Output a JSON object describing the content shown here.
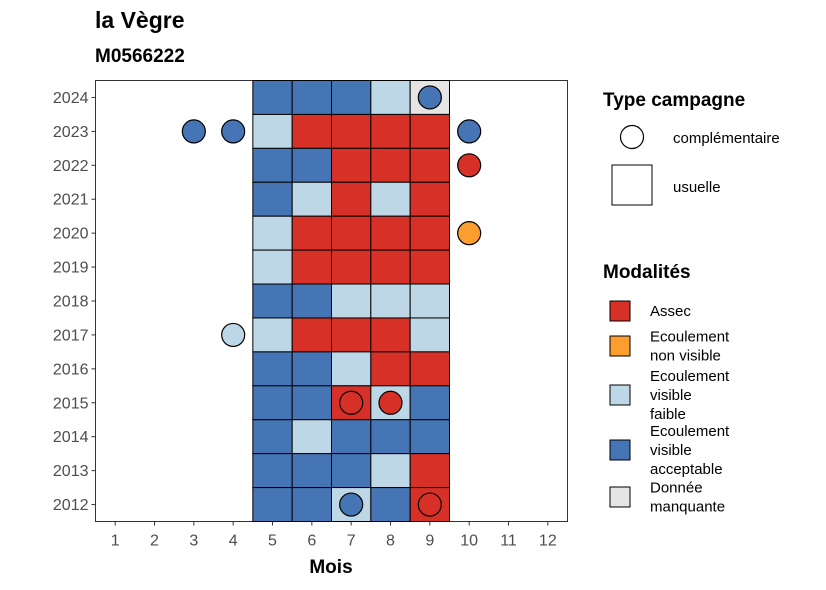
{
  "title": "la Vègre",
  "subtitle": "M0566222",
  "chart_data": {
    "type": "heatmap",
    "xlabel": "Mois",
    "ylabel": "",
    "x_ticks": [
      1,
      2,
      3,
      4,
      5,
      6,
      7,
      8,
      9,
      10,
      11,
      12
    ],
    "y_ticks": [
      2012,
      2013,
      2014,
      2015,
      2016,
      2017,
      2018,
      2019,
      2020,
      2021,
      2022,
      2023,
      2024
    ],
    "xlim": [
      0.5,
      12.5
    ],
    "ylim": [
      2011.5,
      2024.5
    ],
    "grid": false,
    "legend_position": "right",
    "modalites": [
      {
        "key": "assec",
        "label_lines": [
          "Assec"
        ],
        "color": "#d73027"
      },
      {
        "key": "nonvisible",
        "label_lines": [
          "Ecoulement",
          "non visible"
        ],
        "color": "#fc9d2f"
      },
      {
        "key": "faible",
        "label_lines": [
          "Ecoulement",
          "visible",
          "faible"
        ],
        "color": "#bdd7e7"
      },
      {
        "key": "acceptable",
        "label_lines": [
          "Ecoulement",
          "visible",
          "acceptable"
        ],
        "color": "#4575b4"
      },
      {
        "key": "manquante",
        "label_lines": [
          "Donnée",
          "manquante"
        ],
        "color": "#e5e5e5"
      }
    ],
    "type_campagne": {
      "title": "Type campagne",
      "items": [
        {
          "key": "complementaire",
          "label": "complémentaire",
          "shape": "circle"
        },
        {
          "key": "usuelle",
          "label": "usuelle",
          "shape": "square"
        }
      ]
    },
    "modalites_title": "Modalités",
    "usuelle": [
      {
        "year": 2024,
        "months": [
          5,
          6,
          7,
          8,
          9
        ],
        "values": [
          "acceptable",
          "acceptable",
          "acceptable",
          "faible",
          "manquante"
        ]
      },
      {
        "year": 2023,
        "months": [
          5,
          6,
          7,
          8,
          9
        ],
        "values": [
          "faible",
          "assec",
          "assec",
          "assec",
          "assec"
        ]
      },
      {
        "year": 2022,
        "months": [
          5,
          6,
          7,
          8,
          9
        ],
        "values": [
          "acceptable",
          "acceptable",
          "assec",
          "assec",
          "assec"
        ]
      },
      {
        "year": 2021,
        "months": [
          5,
          6,
          7,
          8,
          9
        ],
        "values": [
          "acceptable",
          "faible",
          "assec",
          "faible",
          "assec"
        ]
      },
      {
        "year": 2020,
        "months": [
          5,
          6,
          7,
          8,
          9
        ],
        "values": [
          "faible",
          "assec",
          "assec",
          "assec",
          "assec"
        ]
      },
      {
        "year": 2019,
        "months": [
          5,
          6,
          7,
          8,
          9
        ],
        "values": [
          "faible",
          "assec",
          "assec",
          "assec",
          "assec"
        ]
      },
      {
        "year": 2018,
        "months": [
          5,
          6,
          7,
          8,
          9
        ],
        "values": [
          "acceptable",
          "acceptable",
          "faible",
          "faible",
          "faible"
        ]
      },
      {
        "year": 2017,
        "months": [
          5,
          6,
          7,
          8,
          9
        ],
        "values": [
          "faible",
          "assec",
          "assec",
          "assec",
          "faible"
        ]
      },
      {
        "year": 2016,
        "months": [
          5,
          6,
          7,
          8,
          9
        ],
        "values": [
          "acceptable",
          "acceptable",
          "faible",
          "assec",
          "assec"
        ]
      },
      {
        "year": 2015,
        "months": [
          5,
          6,
          7,
          8,
          9
        ],
        "values": [
          "acceptable",
          "acceptable",
          "assec",
          "faible",
          "acceptable"
        ]
      },
      {
        "year": 2014,
        "months": [
          5,
          6,
          7,
          8,
          9
        ],
        "values": [
          "acceptable",
          "faible",
          "acceptable",
          "acceptable",
          "acceptable"
        ]
      },
      {
        "year": 2013,
        "months": [
          5,
          6,
          7,
          8,
          9
        ],
        "values": [
          "acceptable",
          "acceptable",
          "acceptable",
          "faible",
          "assec"
        ]
      },
      {
        "year": 2012,
        "months": [
          5,
          6,
          7,
          8,
          9
        ],
        "values": [
          "acceptable",
          "acceptable",
          "faible",
          "acceptable",
          "assec"
        ]
      }
    ],
    "complementaire": [
      {
        "year": 2024,
        "month": 9,
        "value": "acceptable"
      },
      {
        "year": 2023,
        "month": 3,
        "value": "acceptable"
      },
      {
        "year": 2023,
        "month": 4,
        "value": "acceptable"
      },
      {
        "year": 2023,
        "month": 10,
        "value": "acceptable"
      },
      {
        "year": 2022,
        "month": 10,
        "value": "assec"
      },
      {
        "year": 2020,
        "month": 10,
        "value": "nonvisible"
      },
      {
        "year": 2017,
        "month": 4,
        "value": "faible"
      },
      {
        "year": 2015,
        "month": 7,
        "value": "assec"
      },
      {
        "year": 2015,
        "month": 8,
        "value": "assec"
      },
      {
        "year": 2012,
        "month": 7,
        "value": "acceptable"
      },
      {
        "year": 2012,
        "month": 9,
        "value": "assec"
      }
    ]
  }
}
